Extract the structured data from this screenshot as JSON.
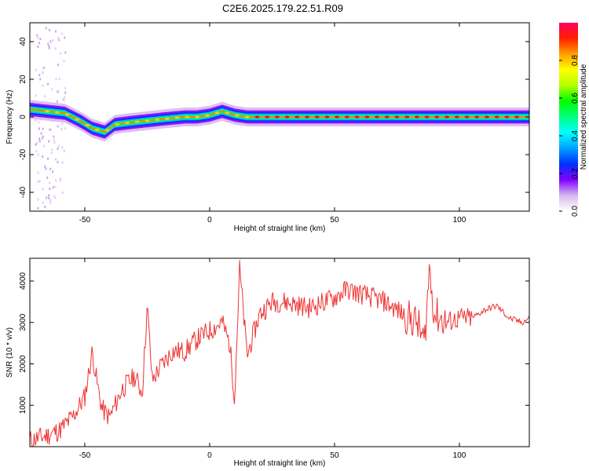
{
  "title": "C2E6.2025.179.22.51.R09",
  "chart_data": [
    {
      "type": "heatmap",
      "xlabel": "Height of straight line (km)",
      "ylabel": "Frequency (Hz)",
      "xlim": [
        -72,
        128
      ],
      "ylim": [
        -50,
        50
      ],
      "xticks": [
        -50,
        0,
        50,
        100
      ],
      "xtick_labels": [
        "-50",
        "0",
        "50",
        "100"
      ],
      "yticks": [
        -40,
        -20,
        0,
        20,
        40
      ],
      "ytick_labels": [
        "-40",
        "-20",
        "0",
        "20",
        "40"
      ],
      "colorbar": {
        "label": "Normalized spectral amplitude",
        "range": [
          0,
          1
        ],
        "ticks": [
          0.0,
          0.2,
          0.4,
          0.6,
          0.8
        ],
        "tick_labels": [
          "0.0",
          "0.2",
          "0.4",
          "0.6",
          "0.8"
        ],
        "colors": [
          "#ffffff",
          "#d8b8ee",
          "#7f00ff",
          "#0030ff",
          "#00a0ff",
          "#00ffff",
          "#00ff80",
          "#00ff00",
          "#b0ff00",
          "#ffff00",
          "#ffa000",
          "#ff2000",
          "#ff0060"
        ]
      },
      "ridge": [
        {
          "x": -72,
          "y": 4
        },
        {
          "x": -65,
          "y": 3
        },
        {
          "x": -58,
          "y": 2
        },
        {
          "x": -52,
          "y": -2
        },
        {
          "x": -47,
          "y": -6
        },
        {
          "x": -42,
          "y": -8
        },
        {
          "x": -38,
          "y": -4
        },
        {
          "x": -32,
          "y": -3
        },
        {
          "x": -25,
          "y": -2
        },
        {
          "x": -18,
          "y": -1
        },
        {
          "x": -10,
          "y": 0
        },
        {
          "x": -5,
          "y": 0
        },
        {
          "x": 0,
          "y": 1
        },
        {
          "x": 5,
          "y": 3
        },
        {
          "x": 10,
          "y": 1
        },
        {
          "x": 15,
          "y": 0
        },
        {
          "x": 20,
          "y": 0
        },
        {
          "x": 60,
          "y": 0
        },
        {
          "x": 90,
          "y": 0
        },
        {
          "x": 128,
          "y": 0
        }
      ]
    },
    {
      "type": "line",
      "xlabel": "Height of straight line (km)",
      "ylabel": "SNR (10 * v/v)",
      "xlim": [
        -72,
        128
      ],
      "ylim": [
        0,
        4550
      ],
      "xticks": [
        -50,
        0,
        50,
        100
      ],
      "xtick_labels": [
        "-50",
        "0",
        "50",
        "100"
      ],
      "yticks": [
        1000,
        2000,
        3000,
        4000
      ],
      "ytick_labels": [
        "1000",
        "2000",
        "3000",
        "4000"
      ],
      "color": "#ee3333",
      "series": [
        {
          "x": [
            -72,
            -66,
            -60,
            -55,
            -50,
            -47,
            -45,
            -43,
            -40,
            -35,
            -30,
            -27,
            -25,
            -23,
            -20,
            -15,
            -10,
            -5,
            0,
            5,
            8,
            10,
            12,
            15,
            20,
            25,
            30,
            40,
            50,
            55,
            60,
            65,
            70,
            75,
            80,
            83,
            86,
            88,
            90,
            95,
            100,
            105,
            110,
            115,
            120,
            125,
            128
          ],
          "y": [
            150,
            250,
            400,
            700,
            1200,
            2300,
            1500,
            900,
            700,
            1400,
            1700,
            1300,
            3400,
            1600,
            1900,
            2300,
            2300,
            2600,
            2800,
            3000,
            2500,
            1200,
            4300,
            2200,
            3200,
            3500,
            3500,
            3350,
            3600,
            3800,
            3700,
            3600,
            3500,
            3300,
            3100,
            3000,
            2500,
            4300,
            3200,
            3000,
            3100,
            3100,
            3300,
            3400,
            3100,
            3000,
            3100
          ]
        }
      ]
    }
  ]
}
